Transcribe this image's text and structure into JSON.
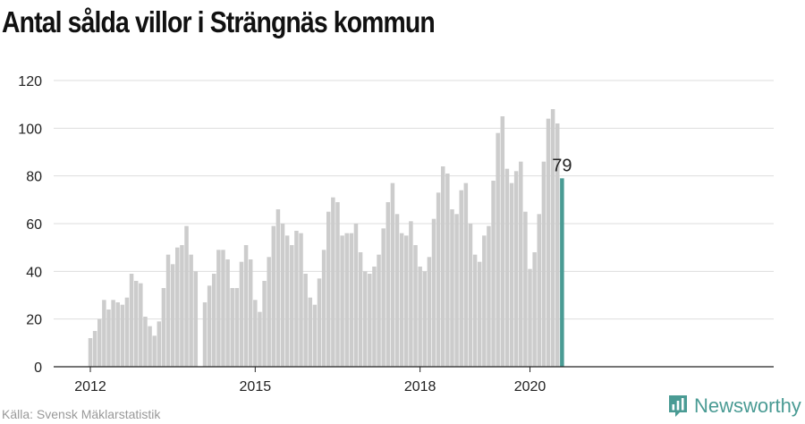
{
  "chart_data": {
    "type": "bar",
    "title": "Antal sålda villor i Strängnäs kommun",
    "xlabel": "",
    "ylabel": "",
    "ylim": [
      0,
      120
    ],
    "yticks": [
      0,
      20,
      40,
      60,
      80,
      100,
      120
    ],
    "xticks": [
      "2012",
      "2015",
      "2018",
      "2020"
    ],
    "grid": true,
    "start": "2012-01",
    "highlight_label": "79",
    "bar_color": "#cccccc",
    "highlight_color": "#4a9b94",
    "values": [
      12,
      15,
      20,
      28,
      24,
      28,
      27,
      26,
      29,
      39,
      36,
      35,
      21,
      17,
      13,
      19,
      33,
      47,
      43,
      50,
      51,
      59,
      47,
      40,
      0,
      27,
      34,
      39,
      49,
      49,
      45,
      33,
      33,
      44,
      51,
      45,
      28,
      23,
      36,
      46,
      59,
      66,
      60,
      55,
      51,
      57,
      56,
      39,
      29,
      26,
      37,
      49,
      65,
      71,
      69,
      55,
      56,
      56,
      60,
      48,
      40,
      39,
      42,
      47,
      58,
      69,
      77,
      64,
      56,
      55,
      61,
      51,
      42,
      40,
      46,
      62,
      73,
      84,
      81,
      66,
      64,
      74,
      77,
      60,
      47,
      44,
      55,
      59,
      78,
      98,
      105,
      83,
      77,
      82,
      86,
      65,
      41,
      48,
      64,
      86,
      104,
      108,
      102,
      79
    ]
  },
  "source": "Källa: Svensk Mäklarstatistik",
  "brand": {
    "name": "Newsworthy",
    "icon": "newsworthy-logo-icon"
  }
}
